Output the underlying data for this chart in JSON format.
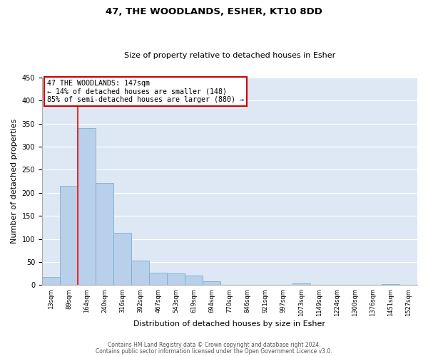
{
  "title": "47, THE WOODLANDS, ESHER, KT10 8DD",
  "subtitle": "Size of property relative to detached houses in Esher",
  "xlabel": "Distribution of detached houses by size in Esher",
  "ylabel": "Number of detached properties",
  "bar_color": "#b8d0ea",
  "bar_edge_color": "#7aafd4",
  "background_color": "#dde8f4",
  "grid_color": "#ffffff",
  "bin_labels": [
    "13sqm",
    "89sqm",
    "164sqm",
    "240sqm",
    "316sqm",
    "392sqm",
    "467sqm",
    "543sqm",
    "619sqm",
    "694sqm",
    "770sqm",
    "846sqm",
    "921sqm",
    "997sqm",
    "1073sqm",
    "1149sqm",
    "1224sqm",
    "1300sqm",
    "1376sqm",
    "1451sqm",
    "1527sqm"
  ],
  "bar_heights": [
    18,
    215,
    340,
    221,
    113,
    53,
    26,
    25,
    20,
    8,
    0,
    0,
    0,
    0,
    4,
    0,
    0,
    0,
    0,
    2,
    0
  ],
  "red_line_x": 2.0,
  "ylim": [
    0,
    450
  ],
  "annotation_text_line1": "47 THE WOODLANDS: 147sqm",
  "annotation_text_line2": "← 14% of detached houses are smaller (148)",
  "annotation_text_line3": "85% of semi-detached houses are larger (880) →",
  "annotation_box_color": "#ffffff",
  "annotation_box_edge_color": "#cc0000",
  "footer_line1": "Contains HM Land Registry data © Crown copyright and database right 2024.",
  "footer_line2": "Contains public sector information licensed under the Open Government Licence v3.0.",
  "fig_bg_color": "#ffffff",
  "spine_color": "#aaaaaa",
  "title_fontsize": 9.5,
  "subtitle_fontsize": 8,
  "tick_fontsize": 6,
  "axis_label_fontsize": 8,
  "footer_fontsize": 5.5
}
